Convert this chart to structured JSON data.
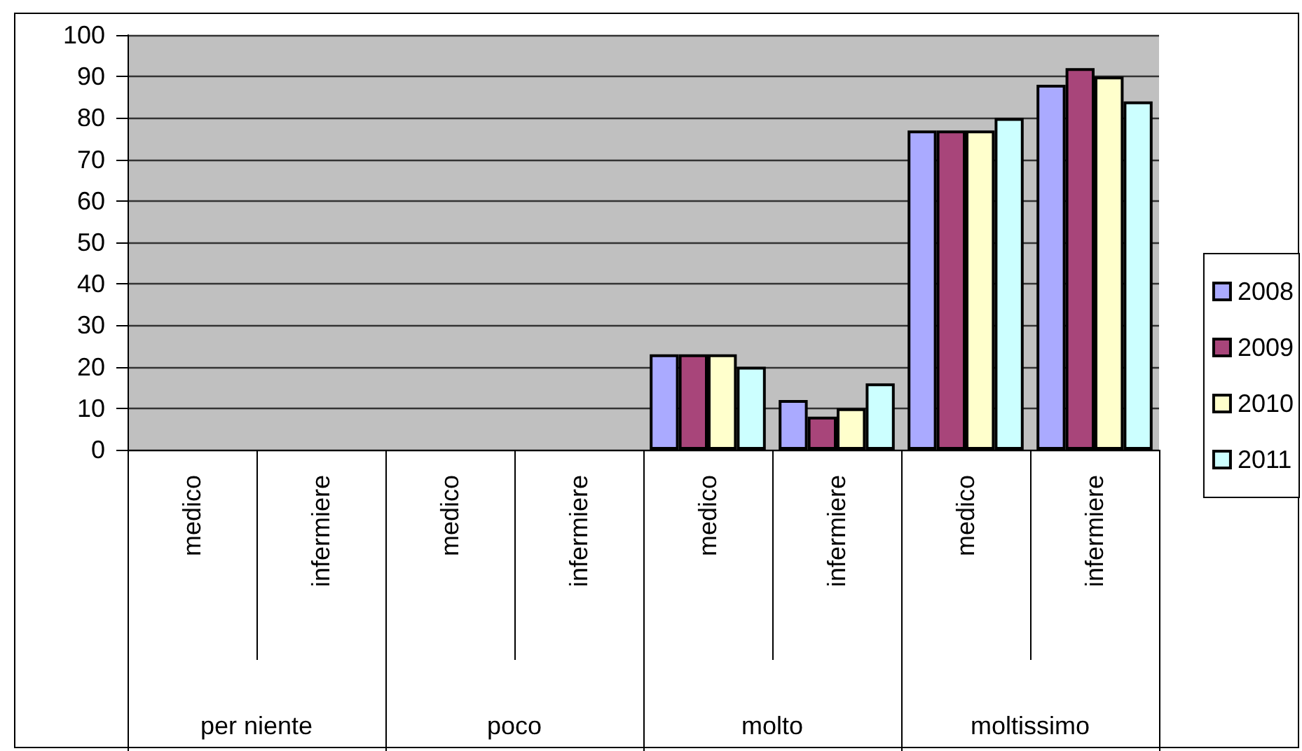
{
  "chart_data": {
    "type": "bar",
    "categories": [
      "medico",
      "infermiere",
      "medico",
      "infermiere",
      "medico",
      "infermiere",
      "medico",
      "infermiere"
    ],
    "series": [
      {
        "name": "2008",
        "color": "#aaaaff",
        "values": [
          null,
          null,
          null,
          null,
          23,
          12,
          77,
          88
        ]
      },
      {
        "name": "2009",
        "color": "#a8457a",
        "values": [
          null,
          null,
          null,
          null,
          23,
          8,
          77,
          92
        ]
      },
      {
        "name": "2010",
        "color": "#ffffcc",
        "values": [
          null,
          null,
          null,
          null,
          23,
          10,
          77,
          90
        ]
      },
      {
        "name": "2011",
        "color": "#ccffff",
        "values": [
          null,
          null,
          null,
          null,
          20,
          16,
          80,
          84
        ]
      }
    ],
    "annotations": [
      "per niente",
      "poco",
      "molto",
      "moltissimo"
    ],
    "ylim": [
      0,
      100
    ],
    "yticks": [
      0,
      10,
      20,
      30,
      40,
      50,
      60,
      70,
      80,
      90,
      100
    ],
    "grid": "y",
    "legend": "right"
  }
}
